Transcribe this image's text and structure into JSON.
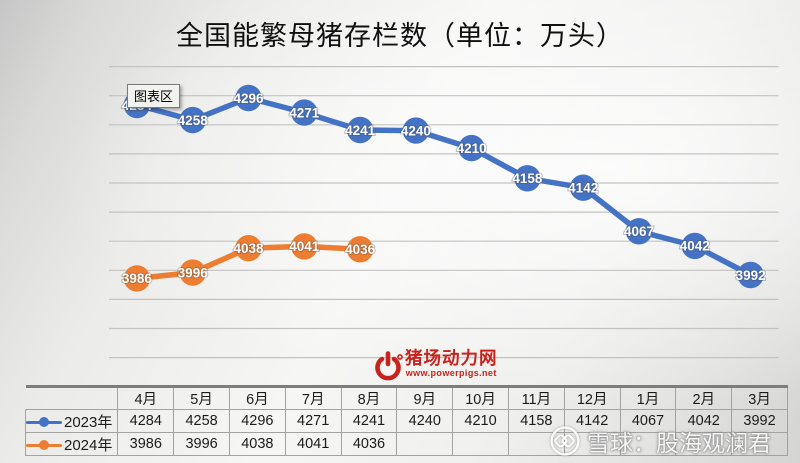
{
  "title": "全国能繁母猪存栏数（单位：万头）",
  "tooltip_label": "图表区",
  "colors": {
    "series_2023": "#4472c4",
    "series_2024": "#ed7d31",
    "gridline": "#c3c3c1",
    "logo_red": "#c9211c"
  },
  "chart_data": {
    "type": "line",
    "title": "全国能繁母猪存栏数（单位：万头）",
    "categories": [
      "4月",
      "5月",
      "6月",
      "7月",
      "8月",
      "9月",
      "10月",
      "11月",
      "12月",
      "1月",
      "2月",
      "3月"
    ],
    "series": [
      {
        "name": "2023年",
        "color": "#4472c4",
        "values": [
          4284,
          4258,
          4296,
          4271,
          4241,
          4240,
          4210,
          4158,
          4142,
          4067,
          4042,
          3992
        ]
      },
      {
        "name": "2024年",
        "color": "#ed7d31",
        "values": [
          3986,
          3996,
          4038,
          4041,
          4036,
          null,
          null,
          null,
          null,
          null,
          null,
          null
        ]
      }
    ],
    "ylim": [
      3850,
      4350
    ],
    "grid_step": 50,
    "grid": true,
    "data_labels": true,
    "legend_position": "table-left",
    "xlabel": "",
    "ylabel": ""
  },
  "logo": {
    "site_name": "猪场动力网",
    "site_url": "www.powerpigs.net"
  },
  "watermark": {
    "text": "雪球：股海观澜君"
  }
}
